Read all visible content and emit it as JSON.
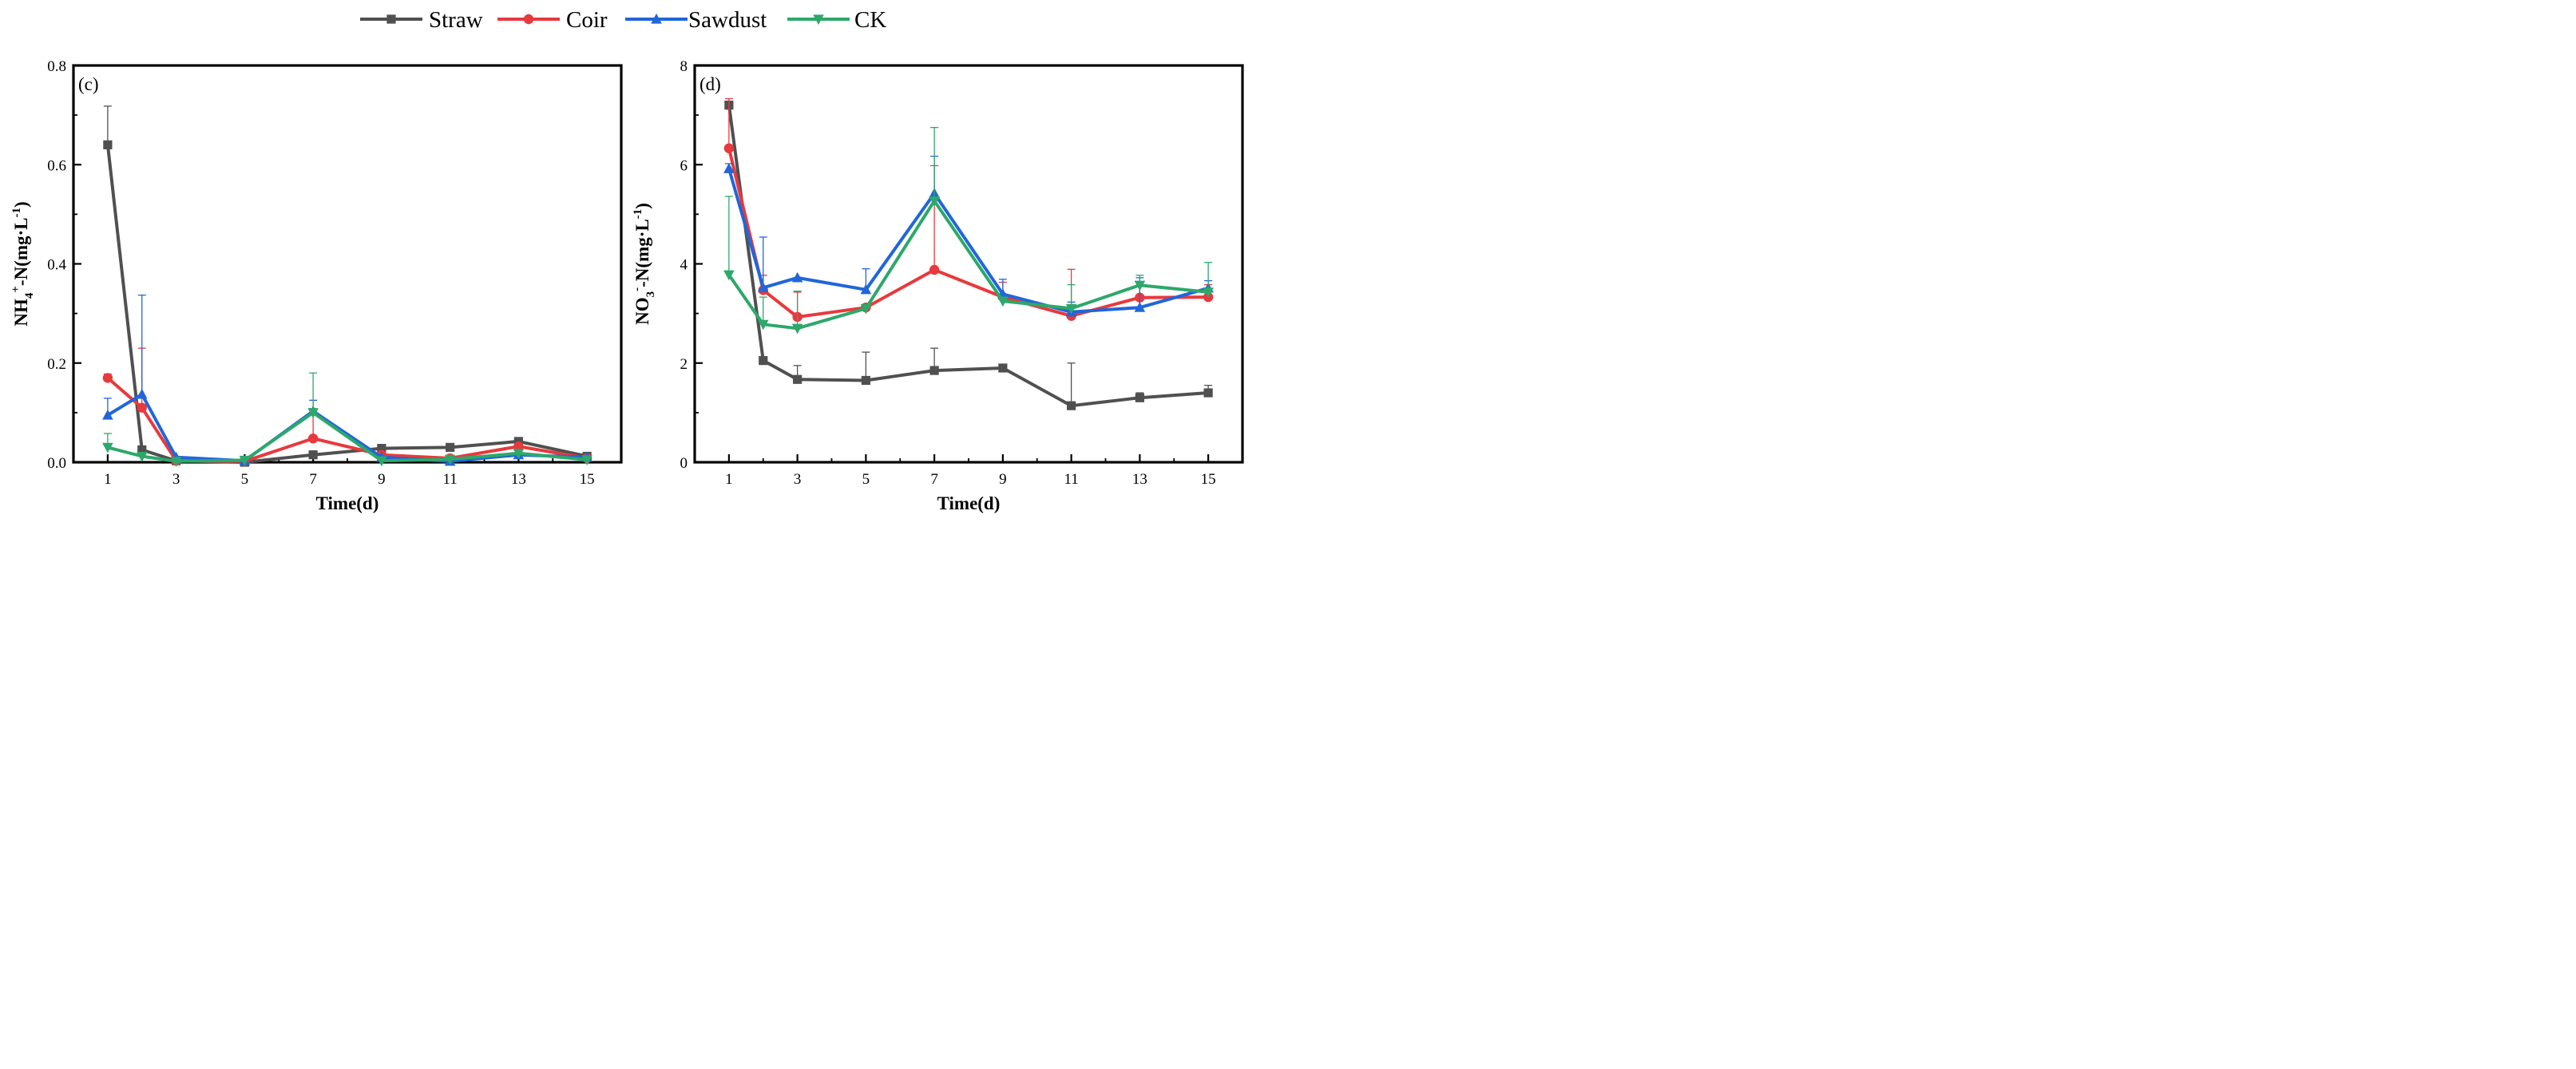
{
  "legend": [
    {
      "name": "Straw",
      "color": "#505050",
      "marker": "square"
    },
    {
      "name": "Coir",
      "color": "#e8393d",
      "marker": "circle"
    },
    {
      "name": "Sawdust",
      "color": "#2166d9",
      "marker": "triangle-up"
    },
    {
      "name": "CK",
      "color": "#2da86a",
      "marker": "triangle-down"
    }
  ],
  "chart_data": [
    {
      "type": "line",
      "panel_label": "(c)",
      "xlabel": "Time(d)",
      "ylabel_text": {
        "main": "NH",
        "sub": "4",
        "sup": "+",
        "rest": "-N(mg·L",
        "sup2": "-1",
        "close": ")"
      },
      "x": [
        1,
        2,
        3,
        5,
        7,
        9,
        11,
        13,
        15
      ],
      "x_ticks": [
        "1",
        "3",
        "5",
        "7",
        "9",
        "11",
        "13",
        "15"
      ],
      "y_ticks": [
        "0.0",
        "0.2",
        "0.4",
        "0.6",
        "0.8"
      ],
      "xlim": [
        0,
        16
      ],
      "ylim": [
        0,
        0.8
      ],
      "series": [
        {
          "name": "Straw",
          "values": [
            0.64,
            0.025,
            0.003,
            0.0,
            0.015,
            0.028,
            0.03,
            0.042,
            0.012
          ],
          "errors": [
            0.078,
            0.0,
            0.0,
            0.0,
            0.0,
            0.0,
            0.0,
            0.0,
            0.0
          ]
        },
        {
          "name": "Coir",
          "values": [
            0.17,
            0.11,
            0.003,
            0.002,
            0.048,
            0.015,
            0.008,
            0.032,
            0.008
          ],
          "errors": [
            0.008,
            0.12,
            0.0,
            0.0,
            0.06,
            0.0,
            0.0,
            0.0,
            0.0
          ]
        },
        {
          "name": "Sawdust",
          "values": [
            0.095,
            0.137,
            0.01,
            0.003,
            0.103,
            0.01,
            0.002,
            0.015,
            0.01
          ],
          "errors": [
            0.034,
            0.2,
            0.0,
            0.0,
            0.022,
            0.0,
            0.0,
            0.0,
            0.0
          ]
        },
        {
          "name": "CK",
          "values": [
            0.03,
            0.012,
            0.002,
            0.004,
            0.1,
            0.003,
            0.006,
            0.018,
            0.005
          ],
          "errors": [
            0.028,
            0.0,
            0.0,
            0.0,
            0.08,
            0.0,
            0.0,
            0.0,
            0.0
          ]
        }
      ]
    },
    {
      "type": "line",
      "panel_label": "(d)",
      "xlabel": "Time(d)",
      "ylabel_text": {
        "main": "NO",
        "sub": "3",
        "sup": "-",
        "rest": "-N(mg·L",
        "sup2": "-1",
        "close": ")"
      },
      "x": [
        1,
        2,
        3,
        5,
        7,
        9,
        11,
        13,
        15
      ],
      "x_ticks": [
        "1",
        "3",
        "5",
        "7",
        "9",
        "11",
        "13",
        "15"
      ],
      "y_ticks": [
        "0",
        "2",
        "4",
        "6",
        "8"
      ],
      "xlim": [
        0,
        16
      ],
      "ylim": [
        0,
        8
      ],
      "series": [
        {
          "name": "Straw",
          "values": [
            7.2,
            2.05,
            1.67,
            1.65,
            1.85,
            1.9,
            1.14,
            1.3,
            1.4
          ],
          "errors": [
            0.08,
            0.0,
            0.28,
            0.57,
            0.45,
            0.0,
            0.86,
            0.1,
            0.15
          ]
        },
        {
          "name": "Coir",
          "values": [
            6.33,
            3.47,
            2.93,
            3.12,
            3.88,
            3.33,
            2.95,
            3.32,
            3.33
          ],
          "errors": [
            1.0,
            0.3,
            0.5,
            0.0,
            2.1,
            0.3,
            0.94,
            0.3,
            0.25
          ]
        },
        {
          "name": "Sawdust",
          "values": [
            5.92,
            3.52,
            3.72,
            3.48,
            5.42,
            3.39,
            3.03,
            3.12,
            3.51
          ],
          "errors": [
            0.1,
            1.02,
            0.0,
            0.42,
            0.75,
            0.3,
            0.2,
            0.6,
            0.15
          ]
        },
        {
          "name": "CK",
          "values": [
            3.78,
            2.78,
            2.7,
            3.1,
            5.27,
            3.25,
            3.1,
            3.57,
            3.43
          ],
          "errors": [
            1.58,
            0.55,
            0.75,
            0.0,
            1.48,
            0.0,
            0.48,
            0.2,
            0.6
          ]
        }
      ]
    }
  ]
}
